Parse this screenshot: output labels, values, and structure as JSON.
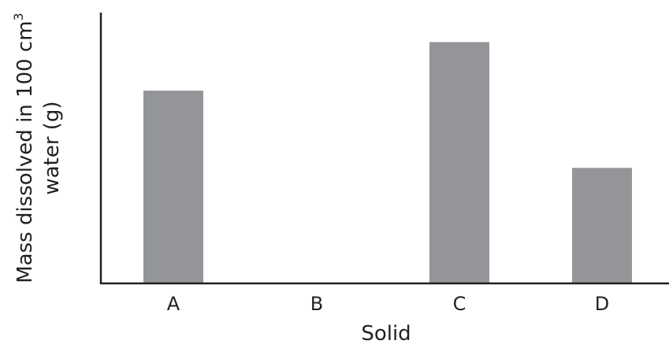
{
  "chart_data": {
    "type": "bar",
    "categories": [
      "A",
      "B",
      "C",
      "D"
    ],
    "values": [
      242,
      0,
      303,
      145
    ],
    "xlabel": "Solid",
    "ylabel": {
      "line1": "Mass dissolved in 100 cm",
      "line1_superscript": "3",
      "line2": "water (g)"
    },
    "ylim": [
      0,
      340
    ],
    "y_ticks_shown": false,
    "grid": false,
    "legend": "none",
    "colors": {
      "bar": "#939598",
      "axis": "#231f20",
      "text": "#231f20"
    }
  }
}
